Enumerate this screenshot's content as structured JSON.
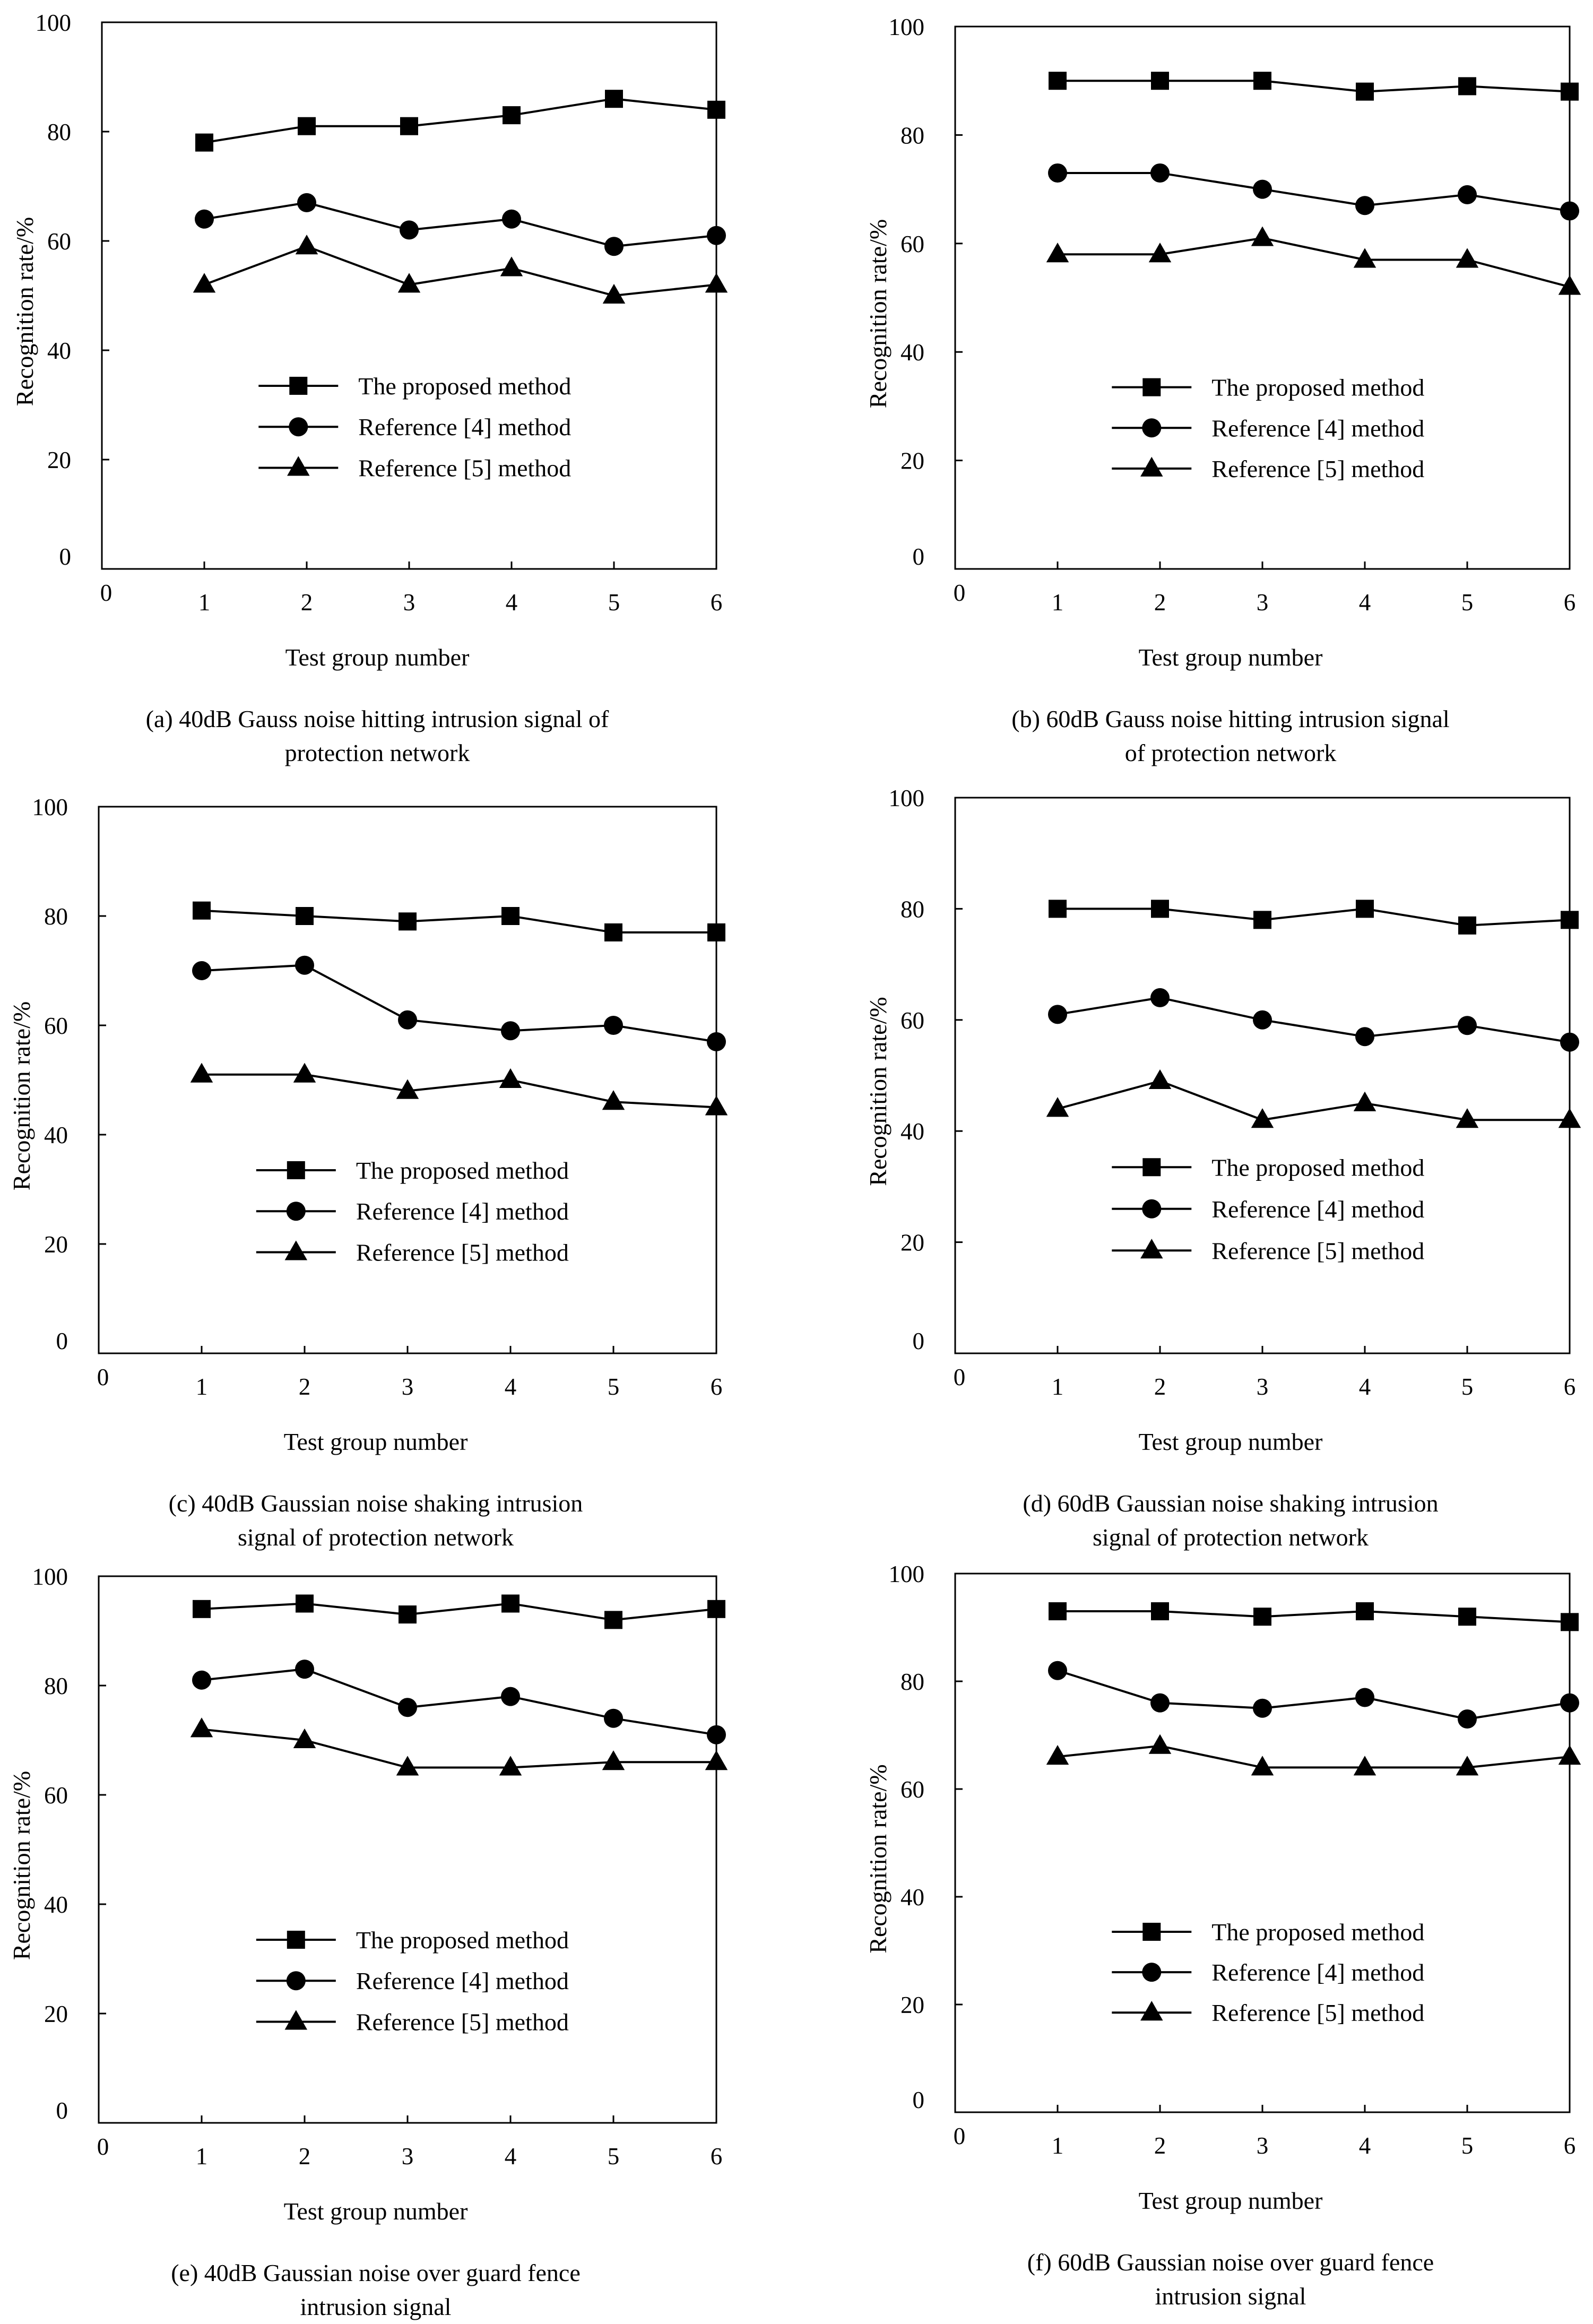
{
  "chart_data": [
    {
      "type": "line",
      "caption_lines": [
        "(a) 40dB Gauss noise hitting intrusion signal of",
        "protection network"
      ],
      "xlabel": "Test group number",
      "ylabel": "Recognition rate/%",
      "xlim": [
        0,
        6
      ],
      "ylim": [
        0,
        100
      ],
      "x_ticks": [
        0,
        1,
        2,
        3,
        4,
        5,
        6
      ],
      "y_ticks": [
        0,
        20,
        40,
        60,
        80,
        100
      ],
      "x": [
        1,
        2,
        3,
        4,
        5,
        6
      ],
      "legend_position": "lower-right",
      "series": [
        {
          "name": "The proposed method",
          "marker": "square",
          "values": [
            78,
            81,
            81,
            83,
            86,
            84
          ]
        },
        {
          "name": "Reference [4] method",
          "marker": "circle",
          "values": [
            64,
            67,
            62,
            64,
            59,
            61
          ]
        },
        {
          "name": "Reference [5] method",
          "marker": "triangle",
          "values": [
            52,
            59,
            52,
            55,
            50,
            52
          ]
        }
      ]
    },
    {
      "type": "line",
      "caption_lines": [
        "(b) 60dB Gauss noise hitting intrusion signal",
        "of protection network"
      ],
      "xlabel": "Test group number",
      "ylabel": "Recognition rate/%",
      "xlim": [
        0,
        6
      ],
      "ylim": [
        0,
        100
      ],
      "x_ticks": [
        0,
        1,
        2,
        3,
        4,
        5,
        6
      ],
      "y_ticks": [
        0,
        20,
        40,
        60,
        80,
        100
      ],
      "x": [
        1,
        2,
        3,
        4,
        5,
        6
      ],
      "legend_position": "lower-right",
      "series": [
        {
          "name": "The proposed method",
          "marker": "square",
          "values": [
            90,
            90,
            90,
            88,
            89,
            88
          ]
        },
        {
          "name": "Reference [4] method",
          "marker": "circle",
          "values": [
            73,
            73,
            70,
            67,
            69,
            66
          ]
        },
        {
          "name": "Reference [5] method",
          "marker": "triangle",
          "values": [
            58,
            58,
            61,
            57,
            57,
            52
          ]
        }
      ]
    },
    {
      "type": "line",
      "caption_lines": [
        "(c) 40dB Gaussian noise shaking intrusion",
        "signal of protection network"
      ],
      "xlabel": "Test group number",
      "ylabel": "Recognition rate/%",
      "xlim": [
        0,
        6
      ],
      "ylim": [
        0,
        100
      ],
      "x_ticks": [
        0,
        1,
        2,
        3,
        4,
        5,
        6
      ],
      "y_ticks": [
        0,
        20,
        40,
        60,
        80,
        100
      ],
      "x": [
        1,
        2,
        3,
        4,
        5,
        6
      ],
      "legend_position": "lower-right",
      "series": [
        {
          "name": "The proposed method",
          "marker": "square",
          "values": [
            81,
            80,
            79,
            80,
            77,
            77
          ]
        },
        {
          "name": "Reference [4] method",
          "marker": "circle",
          "values": [
            70,
            71,
            61,
            59,
            60,
            57
          ]
        },
        {
          "name": "Reference [5] method",
          "marker": "triangle",
          "values": [
            51,
            51,
            48,
            50,
            46,
            45
          ]
        }
      ]
    },
    {
      "type": "line",
      "caption_lines": [
        "(d) 60dB Gaussian noise shaking intrusion",
        "signal of protection network"
      ],
      "xlabel": "Test group number",
      "ylabel": "Recognition rate/%",
      "xlim": [
        0,
        6
      ],
      "ylim": [
        0,
        100
      ],
      "x_ticks": [
        0,
        1,
        2,
        3,
        4,
        5,
        6
      ],
      "y_ticks": [
        0,
        20,
        40,
        60,
        80,
        100
      ],
      "x": [
        1,
        2,
        3,
        4,
        5,
        6
      ],
      "legend_position": "lower-right",
      "series": [
        {
          "name": "The proposed method",
          "marker": "square",
          "values": [
            80,
            80,
            78,
            80,
            77,
            78
          ]
        },
        {
          "name": "Reference [4] method",
          "marker": "circle",
          "values": [
            61,
            64,
            60,
            57,
            59,
            56
          ]
        },
        {
          "name": "Reference [5] method",
          "marker": "triangle",
          "values": [
            44,
            49,
            42,
            45,
            42,
            42
          ]
        }
      ]
    },
    {
      "type": "line",
      "caption_lines": [
        "(e) 40dB Gaussian noise over guard fence",
        "intrusion signal"
      ],
      "xlabel": "Test group number",
      "ylabel": "Recognition rate/%",
      "xlim": [
        0,
        6
      ],
      "ylim": [
        0,
        100
      ],
      "x_ticks": [
        0,
        1,
        2,
        3,
        4,
        5,
        6
      ],
      "y_ticks": [
        0,
        20,
        40,
        60,
        80,
        100
      ],
      "x": [
        1,
        2,
        3,
        4,
        5,
        6
      ],
      "legend_position": "lower-right",
      "series": [
        {
          "name": "The proposed method",
          "marker": "square",
          "values": [
            94,
            95,
            93,
            95,
            92,
            94
          ]
        },
        {
          "name": "Reference [4] method",
          "marker": "circle",
          "values": [
            81,
            83,
            76,
            78,
            74,
            71
          ]
        },
        {
          "name": "Reference [5] method",
          "marker": "triangle",
          "values": [
            72,
            70,
            65,
            65,
            66,
            66
          ]
        }
      ]
    },
    {
      "type": "line",
      "caption_lines": [
        "(f) 60dB Gaussian noise over guard fence",
        "intrusion signal"
      ],
      "xlabel": "Test group number",
      "ylabel": "Recognition rate/%",
      "xlim": [
        0,
        6
      ],
      "ylim": [
        0,
        100
      ],
      "x_ticks": [
        0,
        1,
        2,
        3,
        4,
        5,
        6
      ],
      "y_ticks": [
        0,
        20,
        40,
        60,
        80,
        100
      ],
      "x": [
        1,
        2,
        3,
        4,
        5,
        6
      ],
      "legend_position": "lower-right",
      "series": [
        {
          "name": "The proposed method",
          "marker": "square",
          "values": [
            93,
            93,
            92,
            93,
            92,
            91
          ]
        },
        {
          "name": "Reference [4] method",
          "marker": "circle",
          "values": [
            82,
            76,
            75,
            77,
            73,
            76
          ]
        },
        {
          "name": "Reference [5] method",
          "marker": "triangle",
          "values": [
            66,
            68,
            64,
            64,
            64,
            66
          ]
        }
      ]
    }
  ]
}
